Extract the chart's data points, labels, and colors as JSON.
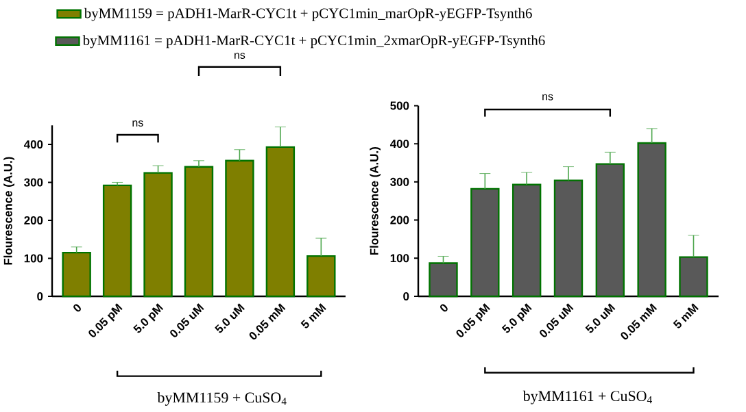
{
  "chart_data": [
    {
      "type": "bar",
      "xlabel": "byMM1159 + CuSO$_{4}$",
      "ylabel": "Flourescence (A.U.)",
      "categories": [
        "0",
        "0.05 pM",
        "5.0 pM",
        "0.05 uM",
        "5.0 uM",
        "0.05 mM",
        "5 mM"
      ],
      "series": [
        {
          "name": "byMM1159 = pADH1-MarR-CYC1t + pCYC1min_marOpR-yEGFP-Tsynth6",
          "color": "#7f7f00",
          "values": [
            115,
            292,
            325,
            341,
            357,
            393,
            106
          ],
          "errors": [
            15,
            8,
            19,
            16,
            29,
            53,
            47
          ]
        }
      ],
      "ylim": [
        0,
        450
      ],
      "yticks": [
        0,
        100,
        200,
        300,
        400
      ],
      "legend": "top",
      "annotations": [
        "ns",
        "ns"
      ]
    },
    {
      "type": "bar",
      "xlabel": "byMM1161 + CuSO$_{4}$",
      "ylabel": "Flourescence (A.U.)",
      "categories": [
        "0",
        "0.05 pM",
        "5.0 pM",
        "0.05 uM",
        "5.0 uM",
        "0.05 mM",
        "5 mM"
      ],
      "series": [
        {
          "name": "byMM1161 = pADH1-MarR-CYC1t + pCYC1min_2xmarOpR-yEGFP-Tsynth6",
          "color": "#595959",
          "values": [
            87,
            282,
            293,
            304,
            347,
            402,
            103
          ],
          "errors": [
            18,
            40,
            32,
            36,
            31,
            38,
            57
          ]
        }
      ],
      "ylim": [
        0,
        500
      ],
      "yticks": [
        0,
        100,
        200,
        300,
        400,
        500
      ],
      "legend": "top left",
      "annotations": [
        "ns"
      ]
    }
  ]
}
